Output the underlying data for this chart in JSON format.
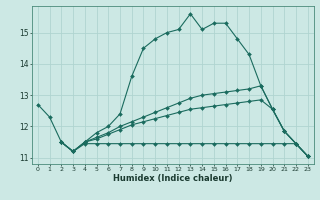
{
  "xlabel": "Humidex (Indice chaleur)",
  "bg_color": "#cce8e4",
  "grid_color": "#b0d4d0",
  "line_color": "#1a6b5e",
  "xlim": [
    -0.5,
    23.5
  ],
  "ylim": [
    10.8,
    15.85
  ],
  "yticks": [
    11,
    12,
    13,
    14,
    15
  ],
  "xticks": [
    0,
    1,
    2,
    3,
    4,
    5,
    6,
    7,
    8,
    9,
    10,
    11,
    12,
    13,
    14,
    15,
    16,
    17,
    18,
    19,
    20,
    21,
    22,
    23
  ],
  "curves": [
    {
      "x": [
        0,
        1,
        2,
        3,
        4,
        5,
        6,
        7,
        8,
        9,
        10,
        11,
        12,
        13,
        14,
        15,
        16,
        17,
        18,
        19,
        20,
        21,
        22,
        23
      ],
      "y": [
        12.7,
        12.3,
        11.5,
        11.2,
        11.5,
        11.8,
        12.0,
        12.4,
        13.6,
        14.5,
        14.8,
        15.0,
        15.1,
        15.6,
        15.1,
        15.3,
        15.3,
        14.8,
        14.3,
        13.3,
        12.55,
        11.85,
        11.45,
        11.05
      ]
    },
    {
      "x": [
        2,
        3,
        4,
        5,
        6,
        7,
        8,
        9,
        10,
        11,
        12,
        13,
        14,
        15,
        16,
        17,
        18,
        19,
        20,
        21,
        22,
        23
      ],
      "y": [
        11.5,
        11.2,
        11.45,
        11.45,
        11.45,
        11.45,
        11.45,
        11.45,
        11.45,
        11.45,
        11.45,
        11.45,
        11.45,
        11.45,
        11.45,
        11.45,
        11.45,
        11.45,
        11.45,
        11.45,
        11.45,
        11.05
      ]
    },
    {
      "x": [
        2,
        3,
        4,
        5,
        6,
        7,
        8,
        9,
        10,
        11,
        12,
        13,
        14,
        15,
        16,
        17,
        18,
        19,
        20,
        21,
        22,
        23
      ],
      "y": [
        11.5,
        11.2,
        11.5,
        11.6,
        11.75,
        11.9,
        12.05,
        12.15,
        12.25,
        12.35,
        12.45,
        12.55,
        12.6,
        12.65,
        12.7,
        12.75,
        12.8,
        12.85,
        12.55,
        11.85,
        11.45,
        11.05
      ]
    },
    {
      "x": [
        2,
        3,
        4,
        5,
        6,
        7,
        8,
        9,
        10,
        11,
        12,
        13,
        14,
        15,
        16,
        17,
        18,
        19,
        20,
        21,
        22,
        23
      ],
      "y": [
        11.5,
        11.2,
        11.5,
        11.65,
        11.8,
        12.0,
        12.15,
        12.3,
        12.45,
        12.6,
        12.75,
        12.9,
        13.0,
        13.05,
        13.1,
        13.15,
        13.2,
        13.3,
        12.55,
        11.85,
        11.45,
        11.05
      ]
    }
  ]
}
